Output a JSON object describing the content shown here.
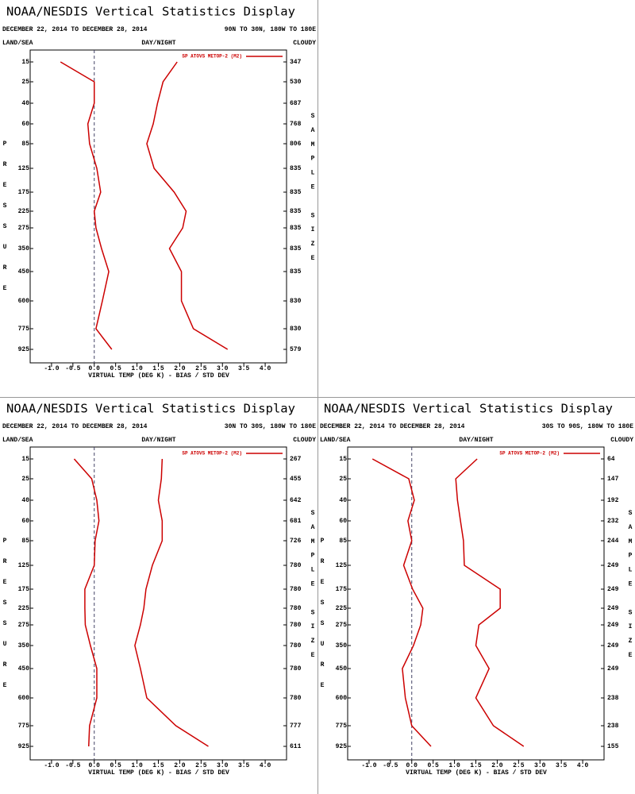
{
  "chart_data": [
    {
      "type": "line",
      "title": "NOAA/NESDIS Vertical Statistics Display",
      "date_range": "DECEMBER 22, 2014 TO DECEMBER 28, 2014",
      "region": "90N TO 30N, 180W TO 180E",
      "left_label": "LAND/SEA",
      "center_label": "DAY/NIGHT",
      "right_label": "CLOUDY",
      "ylabel": "PRESSURE",
      "y2label": "SAMPLE SIZE",
      "xlabel": "VIRTUAL TEMP (DEG K) - BIAS / STD DEV",
      "categories": [
        15,
        25,
        40,
        60,
        85,
        125,
        175,
        225,
        275,
        350,
        450,
        600,
        775,
        925
      ],
      "sample_sizes": [
        347,
        530,
        687,
        768,
        806,
        835,
        835,
        835,
        835,
        835,
        835,
        830,
        830,
        579
      ],
      "series": [
        {
          "name": "SP ATOVS METOP-2 (M2)",
          "color": "#cc0000",
          "values": [
            -0.79,
            0.0,
            0.0,
            -0.15,
            -0.11,
            0.06,
            0.15,
            0.0,
            0.04,
            0.17,
            0.34,
            0.19,
            0.04,
            0.41
          ]
        },
        {
          "color": "#cc0000",
          "values": [
            1.94,
            1.61,
            1.48,
            1.38,
            1.23,
            1.4,
            1.87,
            2.15,
            2.07,
            1.76,
            2.04,
            2.04,
            2.32,
            3.12
          ]
        }
      ],
      "xlim": [
        -1.5,
        4.5
      ],
      "xticks": [
        {
          "value": -1,
          "label": "-1.0"
        },
        -0.5,
        {
          "value": 0,
          "label": "0.0"
        },
        0.5,
        {
          "value": 1,
          "label": "1.0"
        },
        1.5,
        {
          "value": 2,
          "label": "2.0"
        },
        2.5,
        {
          "value": 3,
          "label": "3.0"
        },
        3.5,
        {
          "value": 4,
          "label": "4.0"
        }
      ]
    },
    {
      "type": "line",
      "title": "NOAA/NESDIS Vertical Statistics Display",
      "date_range": "DECEMBER 22, 2014 TO DECEMBER 28, 2014",
      "region": "30N TO 30S, 180W TO 180E",
      "left_label": "LAND/SEA",
      "center_label": "DAY/NIGHT",
      "right_label": "CLOUDY",
      "ylabel": "PRESSURE",
      "y2label": "SAMPLE SIZE",
      "xlabel": "VIRTUAL TEMP (DEG K) - BIAS / STD DEV",
      "categories": [
        15,
        25,
        40,
        60,
        85,
        125,
        175,
        225,
        275,
        350,
        450,
        600,
        775,
        925
      ],
      "sample_sizes": [
        267,
        455,
        642,
        681,
        726,
        780,
        780,
        780,
        780,
        780,
        780,
        780,
        777,
        611
      ],
      "series": [
        {
          "name": "SP ATOVS METOP-2 (M2)",
          "color": "#cc0000",
          "values": [
            -0.47,
            -0.06,
            0.06,
            0.11,
            0.02,
            0.0,
            -0.22,
            -0.22,
            -0.21,
            -0.09,
            0.06,
            0.06,
            -0.11,
            -0.13
          ]
        },
        {
          "color": "#cc0000",
          "values": [
            1.59,
            1.57,
            1.5,
            1.59,
            1.59,
            1.36,
            1.21,
            1.16,
            1.08,
            0.95,
            1.08,
            1.23,
            1.91,
            2.67
          ]
        }
      ],
      "xlim": [
        -1.5,
        4.5
      ],
      "xticks": [
        {
          "value": -1,
          "label": "-1.0"
        },
        -0.5,
        {
          "value": 0,
          "label": "0.0"
        },
        0.5,
        {
          "value": 1,
          "label": "1.0"
        },
        1.5,
        {
          "value": 2,
          "label": "2.0"
        },
        2.5,
        {
          "value": 3,
          "label": "3.0"
        },
        3.5,
        {
          "value": 4,
          "label": "4.0"
        }
      ]
    },
    {
      "type": "line",
      "title": "NOAA/NESDIS Vertical Statistics Display",
      "date_range": "DECEMBER 22, 2014 TO DECEMBER 28, 2014",
      "region": "30S TO 90S, 180W TO 180E",
      "left_label": "LAND/SEA",
      "center_label": "DAY/NIGHT",
      "right_label": "CLOUDY",
      "ylabel": "PRESSURE",
      "y2label": "SAMPLE SIZE",
      "xlabel": "VIRTUAL TEMP (DEG K) - BIAS / STD DEV",
      "categories": [
        15,
        25,
        40,
        60,
        85,
        125,
        175,
        225,
        275,
        350,
        450,
        600,
        775,
        925
      ],
      "sample_sizes": [
        64,
        147,
        192,
        232,
        244,
        249,
        249,
        249,
        249,
        249,
        249,
        238,
        238,
        155
      ],
      "series": [
        {
          "name": "SP ATOVS METOP-2 (M2)",
          "color": "#cc0000",
          "values": [
            -0.92,
            -0.07,
            0.06,
            -0.09,
            0.0,
            -0.19,
            0.02,
            0.26,
            0.21,
            0.04,
            -0.22,
            -0.15,
            0.0,
            0.45
          ]
        },
        {
          "color": "#cc0000",
          "values": [
            1.53,
            1.03,
            1.07,
            1.14,
            1.21,
            1.23,
            2.07,
            2.07,
            1.57,
            1.5,
            1.81,
            1.5,
            1.91,
            2.62
          ]
        }
      ],
      "xlim": [
        -1.5,
        4.5
      ],
      "xticks": [
        {
          "value": -1,
          "label": "-1.0"
        },
        -0.5,
        {
          "value": 0,
          "label": "0.0"
        },
        0.5,
        {
          "value": 1,
          "label": "1.0"
        },
        1.5,
        {
          "value": 2,
          "label": "2.0"
        },
        2.5,
        {
          "value": 3,
          "label": "3.0"
        },
        3.5,
        {
          "value": 4,
          "label": "4.0"
        }
      ]
    }
  ]
}
